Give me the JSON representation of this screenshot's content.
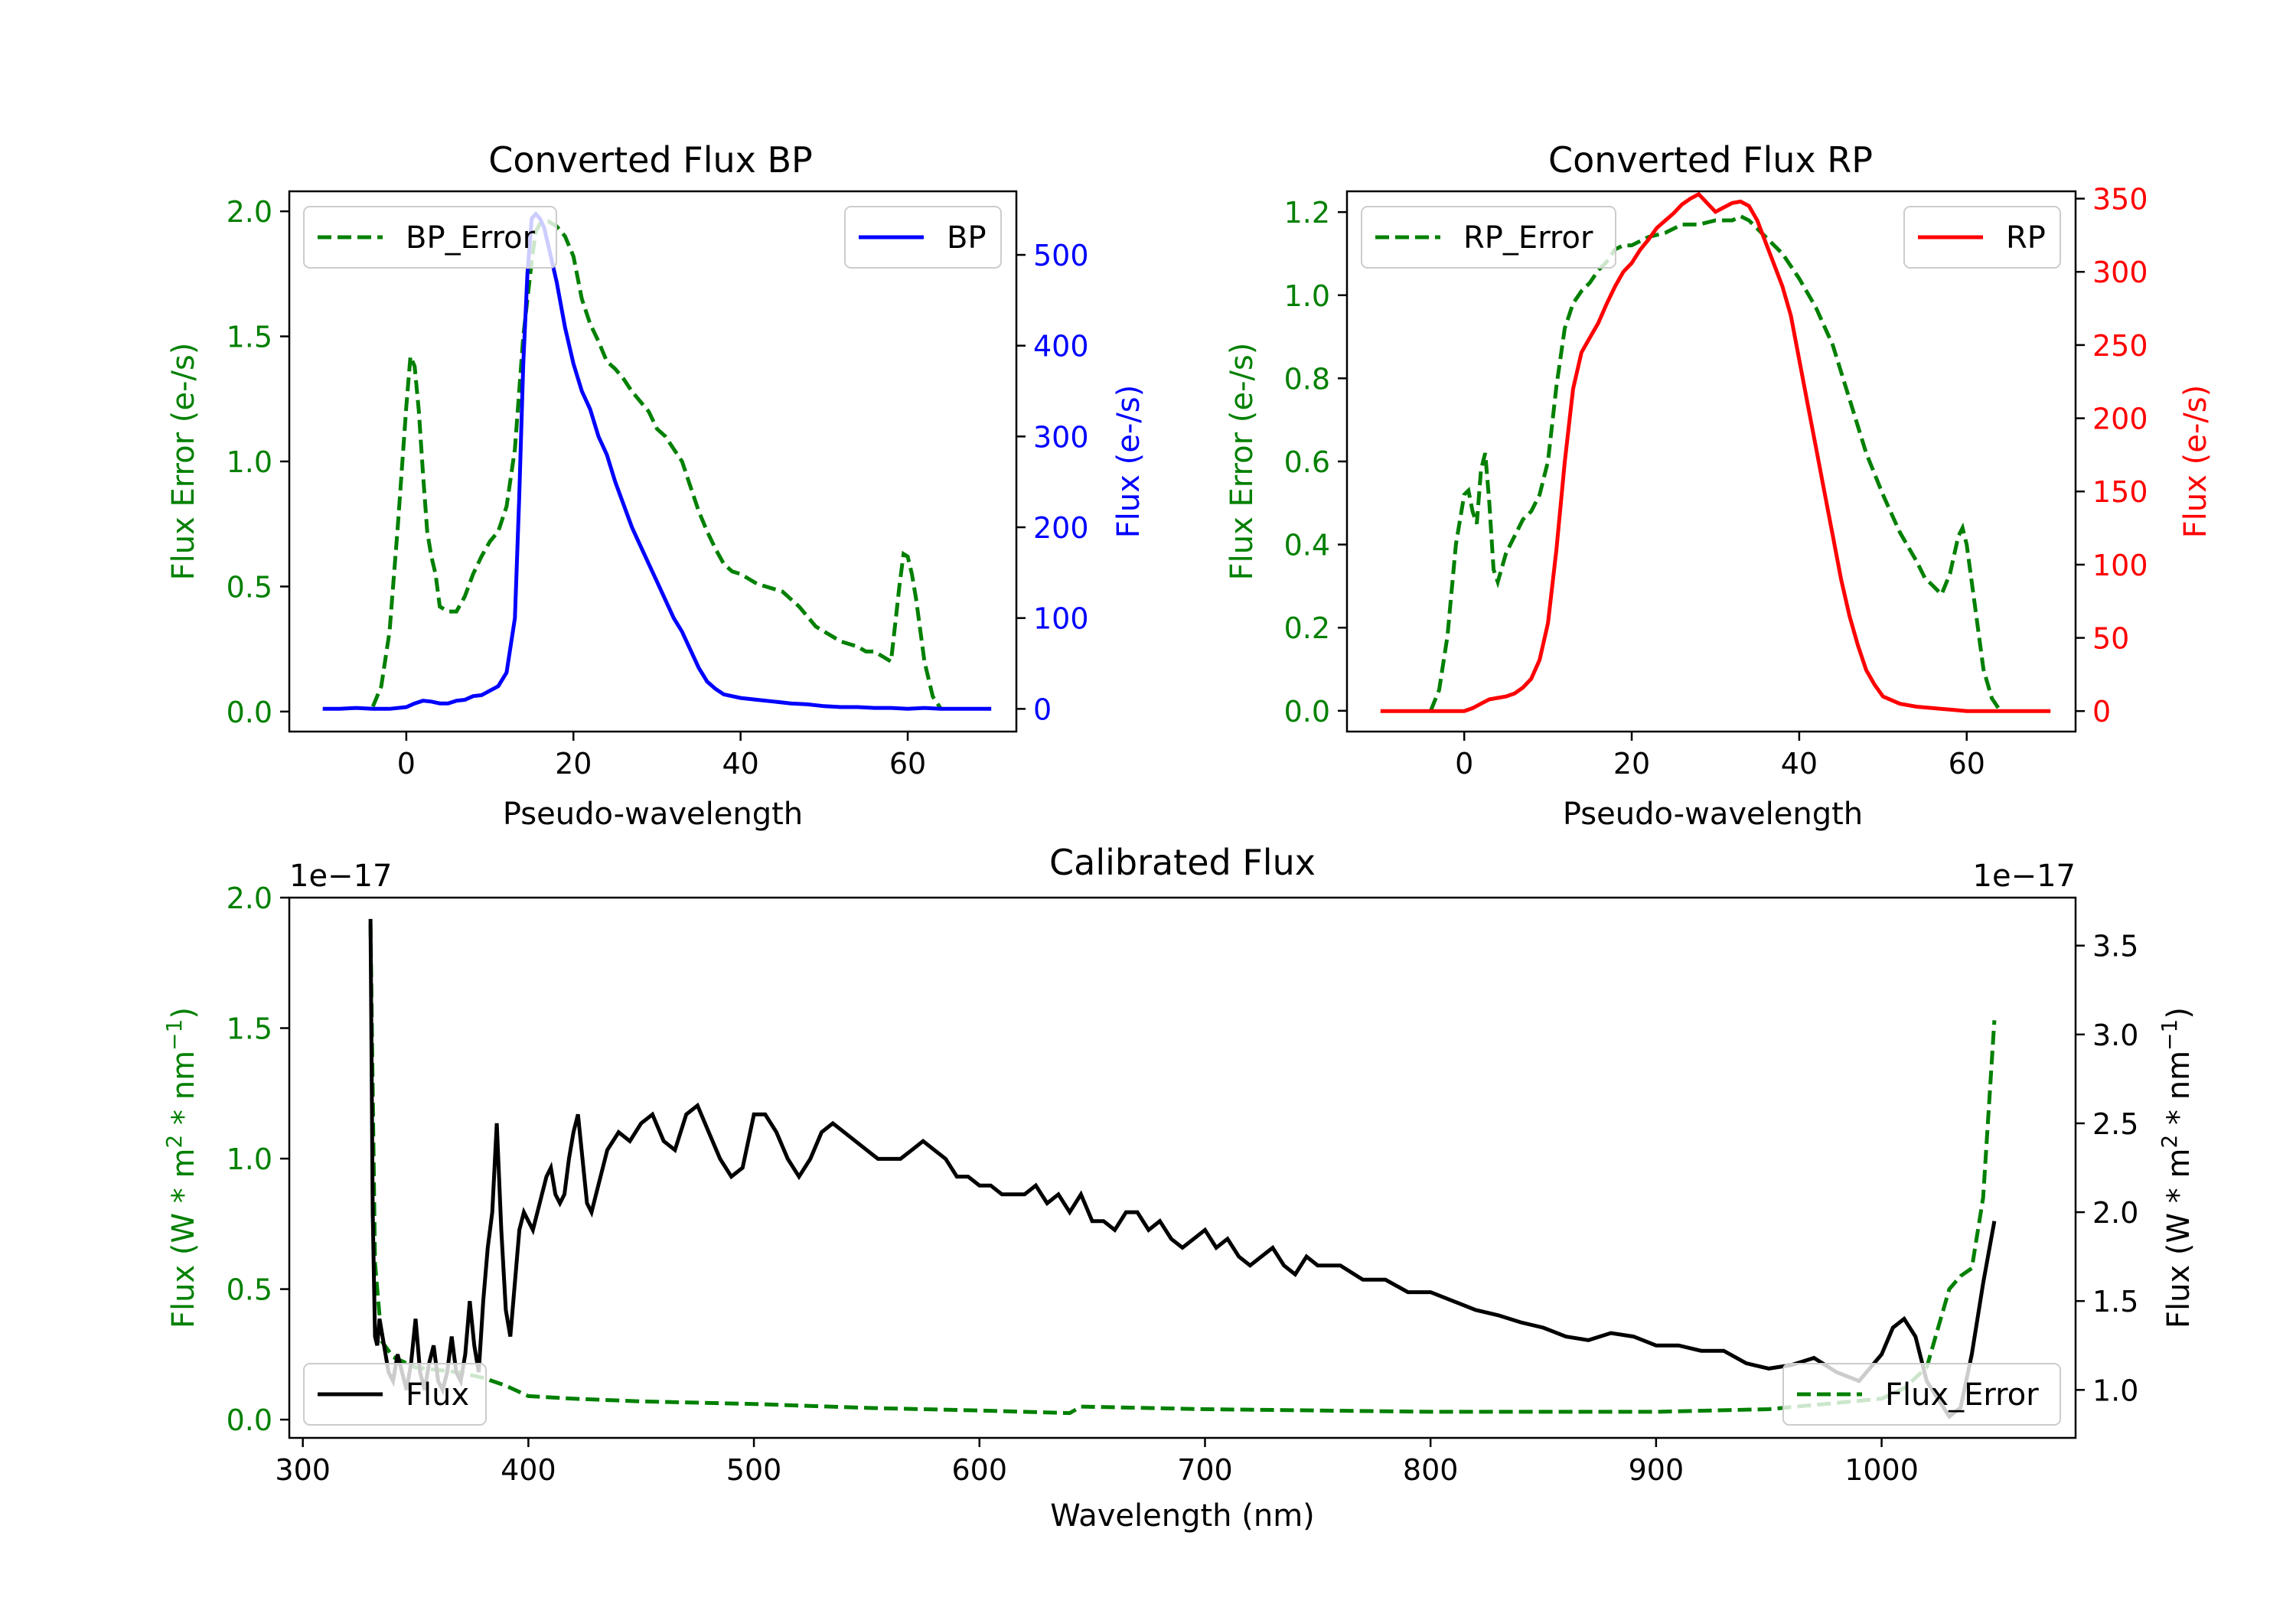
{
  "colors": {
    "green": "#008000",
    "blue": "#0000ff",
    "red": "#ff0000",
    "black": "#000000"
  },
  "chart_data": [
    {
      "type": "line",
      "title": "Converted Flux BP",
      "xlabel": "Pseudo-wavelength",
      "ylabel_left": "Flux Error (e-/s)",
      "ylabel_right": "Flux (e-/s)",
      "xlim": [
        -14,
        73
      ],
      "ylim_left": [
        -0.08,
        2.08
      ],
      "ylim_right": [
        -25,
        570
      ],
      "xticks": [
        0,
        20,
        40,
        60
      ],
      "yticks_left": [
        0.0,
        0.5,
        1.0,
        1.5,
        2.0
      ],
      "yticks_right": [
        0,
        100,
        200,
        300,
        400,
        500
      ],
      "legend_left": "BP_Error",
      "legend_right": "BP",
      "legend_left_loc": "upper-left",
      "legend_right_loc": "upper-right",
      "series": [
        {
          "name": "BP_Error",
          "axis": "left",
          "style": "dashed",
          "color": "green",
          "x": [
            -4,
            -3,
            -2,
            -1,
            0,
            0.5,
            1,
            1.5,
            2,
            2.5,
            3,
            3.5,
            4,
            5,
            6,
            7,
            8,
            9,
            10,
            11,
            12,
            13,
            14,
            15,
            15.5,
            16,
            17,
            18,
            19,
            20,
            21,
            22,
            23,
            24,
            25,
            26,
            27,
            28,
            29,
            30,
            31,
            32,
            33,
            34,
            35,
            36,
            37,
            38,
            39,
            40,
            41,
            42,
            43,
            44,
            45,
            46,
            47,
            48,
            49,
            50,
            51,
            52,
            53,
            54,
            55,
            56,
            57,
            58,
            58.5,
            59,
            59.5,
            60,
            60.5,
            61,
            62,
            63,
            64
          ],
          "y": [
            0.02,
            0.1,
            0.32,
            0.75,
            1.22,
            1.42,
            1.38,
            1.2,
            0.95,
            0.72,
            0.62,
            0.55,
            0.42,
            0.4,
            0.4,
            0.46,
            0.55,
            0.62,
            0.68,
            0.72,
            0.82,
            1.05,
            1.5,
            1.8,
            1.92,
            1.95,
            1.96,
            1.94,
            1.9,
            1.82,
            1.65,
            1.55,
            1.48,
            1.4,
            1.37,
            1.33,
            1.28,
            1.24,
            1.2,
            1.13,
            1.1,
            1.05,
            1.0,
            0.9,
            0.8,
            0.72,
            0.65,
            0.59,
            0.56,
            0.55,
            0.53,
            0.51,
            0.5,
            0.49,
            0.48,
            0.45,
            0.42,
            0.38,
            0.34,
            0.32,
            0.3,
            0.28,
            0.27,
            0.26,
            0.24,
            0.24,
            0.22,
            0.2,
            0.35,
            0.5,
            0.63,
            0.62,
            0.55,
            0.45,
            0.2,
            0.06,
            0.01
          ]
        },
        {
          "name": "BP",
          "axis": "right",
          "style": "solid",
          "color": "blue",
          "x": [
            -10,
            -8,
            -6,
            -4,
            -2,
            0,
            1,
            2,
            3,
            4,
            5,
            6,
            7,
            8,
            9,
            10,
            11,
            12,
            13,
            13.5,
            14,
            14.5,
            15,
            15.5,
            16,
            16.5,
            17,
            18,
            19,
            20,
            21,
            22,
            23,
            24,
            25,
            26,
            27,
            28,
            29,
            30,
            31,
            32,
            33,
            34,
            35,
            36,
            37,
            38,
            40,
            42,
            44,
            46,
            48,
            50,
            52,
            54,
            56,
            58,
            60,
            62,
            64,
            66,
            68,
            70
          ],
          "y": [
            0,
            0,
            1,
            0,
            0,
            2,
            6,
            9,
            8,
            6,
            6,
            9,
            10,
            14,
            15,
            20,
            25,
            40,
            100,
            230,
            380,
            480,
            540,
            545,
            540,
            530,
            510,
            470,
            420,
            380,
            350,
            330,
            300,
            280,
            250,
            225,
            200,
            180,
            160,
            140,
            120,
            100,
            85,
            65,
            45,
            30,
            22,
            16,
            12,
            10,
            8,
            6,
            5,
            3,
            2,
            2,
            1,
            1,
            0,
            1,
            0,
            0,
            0,
            0
          ]
        }
      ]
    },
    {
      "type": "line",
      "title": "Converted Flux RP",
      "xlabel": "Pseudo-wavelength",
      "ylabel_left": "Flux Error (e-/s)",
      "ylabel_right": "Flux (e-/s)",
      "xlim": [
        -14,
        73
      ],
      "ylim_left": [
        -0.05,
        1.25
      ],
      "ylim_right": [
        -14,
        355
      ],
      "xticks": [
        0,
        20,
        40,
        60
      ],
      "yticks_left": [
        0.0,
        0.2,
        0.4,
        0.6,
        0.8,
        1.0,
        1.2
      ],
      "yticks_right": [
        0,
        50,
        100,
        150,
        200,
        250,
        300,
        350
      ],
      "legend_left": "RP_Error",
      "legend_right": "RP",
      "legend_left_loc": "upper-left",
      "legend_right_loc": "upper-right",
      "series": [
        {
          "name": "RP_Error",
          "axis": "left",
          "style": "dashed",
          "color": "green",
          "x": [
            -4,
            -3,
            -2,
            -1,
            0,
            0.5,
            1,
            1.5,
            2,
            2.5,
            3,
            3.5,
            4,
            5,
            6,
            7,
            8,
            9,
            10,
            11,
            12,
            13,
            14,
            15,
            16,
            17,
            18,
            19,
            20,
            22,
            24,
            26,
            28,
            30,
            32,
            33,
            34,
            35,
            36,
            38,
            40,
            42,
            44,
            46,
            48,
            50,
            52,
            54,
            55,
            56,
            57,
            58,
            59,
            59.5,
            60,
            61,
            62,
            63,
            64
          ],
          "y": [
            0.0,
            0.05,
            0.18,
            0.4,
            0.52,
            0.53,
            0.48,
            0.45,
            0.58,
            0.62,
            0.5,
            0.34,
            0.31,
            0.38,
            0.42,
            0.46,
            0.48,
            0.52,
            0.6,
            0.78,
            0.92,
            0.98,
            1.01,
            1.03,
            1.06,
            1.08,
            1.11,
            1.12,
            1.12,
            1.14,
            1.15,
            1.17,
            1.17,
            1.18,
            1.18,
            1.19,
            1.18,
            1.16,
            1.14,
            1.1,
            1.04,
            0.97,
            0.88,
            0.75,
            0.62,
            0.52,
            0.43,
            0.36,
            0.32,
            0.3,
            0.28,
            0.33,
            0.42,
            0.44,
            0.4,
            0.25,
            0.1,
            0.03,
            0.0
          ]
        },
        {
          "name": "RP",
          "axis": "right",
          "style": "solid",
          "color": "red",
          "x": [
            -10,
            -8,
            -6,
            -4,
            -2,
            0,
            1,
            2,
            3,
            4,
            5,
            6,
            7,
            8,
            9,
            10,
            11,
            12,
            13,
            14,
            15,
            16,
            17,
            18,
            19,
            20,
            21,
            22,
            23,
            24,
            25,
            26,
            27,
            28,
            29,
            30,
            31,
            32,
            33,
            34,
            35,
            36,
            37,
            38,
            39,
            40,
            41,
            42,
            43,
            44,
            45,
            46,
            47,
            48,
            49,
            50,
            52,
            54,
            56,
            58,
            60,
            62,
            64,
            66,
            68,
            70
          ],
          "y": [
            0,
            0,
            0,
            0,
            0,
            0,
            2,
            5,
            8,
            9,
            10,
            12,
            16,
            22,
            35,
            60,
            110,
            170,
            220,
            245,
            255,
            265,
            278,
            290,
            300,
            306,
            315,
            322,
            330,
            335,
            340,
            346,
            350,
            353,
            347,
            341,
            344,
            347,
            348,
            345,
            335,
            320,
            305,
            290,
            270,
            240,
            210,
            180,
            150,
            120,
            90,
            65,
            45,
            28,
            18,
            10,
            5,
            3,
            2,
            1,
            0,
            0,
            0,
            0,
            0,
            0
          ]
        }
      ]
    },
    {
      "type": "line",
      "title": "Calibrated Flux",
      "xlabel": "Wavelength (nm)",
      "ylabel_left_pre": "Flux (W * m",
      "ylabel_left_sup1": "2",
      "ylabel_left_mid": " * nm",
      "ylabel_left_sup2": "−1",
      "ylabel_left_post": ")",
      "ylabel_right_pre": "Flux (W * m",
      "ylabel_right_sup1": "2",
      "ylabel_right_mid": " * nm",
      "ylabel_right_sup2": "−1",
      "ylabel_right_post": ")",
      "offset_left": "1e−17",
      "offset_right": "1e−17",
      "xlim": [
        294,
        1086
      ],
      "ylim_left": [
        -0.07,
        2.0
      ],
      "ylim_right": [
        0.73,
        3.77
      ],
      "xticks": [
        300,
        400,
        500,
        600,
        700,
        800,
        900,
        1000
      ],
      "yticks_left": [
        0.0,
        0.5,
        1.0,
        1.5,
        2.0
      ],
      "yticks_right": [
        1.0,
        1.5,
        2.0,
        2.5,
        3.0,
        3.5
      ],
      "legend_left": "Flux",
      "legend_right": "Flux_Error",
      "legend_left_loc": "lower-left",
      "legend_right_loc": "lower-right",
      "series": [
        {
          "name": "Flux_Error",
          "axis": "left",
          "style": "dashed",
          "color": "green",
          "x": [
            330,
            332,
            335,
            340,
            350,
            360,
            370,
            380,
            390,
            400,
            420,
            450,
            500,
            550,
            600,
            640,
            645,
            700,
            800,
            900,
            950,
            1000,
            1010,
            1020,
            1025,
            1030,
            1035,
            1040,
            1045,
            1050
          ],
          "y": [
            1.9,
            0.6,
            0.3,
            0.24,
            0.2,
            0.19,
            0.18,
            0.16,
            0.13,
            0.09,
            0.08,
            0.07,
            0.06,
            0.045,
            0.035,
            0.025,
            0.05,
            0.04,
            0.03,
            0.03,
            0.04,
            0.08,
            0.12,
            0.2,
            0.35,
            0.5,
            0.55,
            0.58,
            0.85,
            1.53
          ]
        },
        {
          "name": "Flux",
          "axis": "right",
          "style": "solid",
          "color": "black",
          "x": [
            330,
            331,
            332,
            333,
            334,
            336,
            338,
            340,
            342,
            344,
            346,
            348,
            350,
            352,
            354,
            356,
            358,
            360,
            362,
            364,
            366,
            368,
            370,
            372,
            374,
            376,
            378,
            380,
            382,
            384,
            386,
            388,
            390,
            392,
            394,
            396,
            398,
            400,
            402,
            404,
            406,
            408,
            410,
            412,
            414,
            416,
            418,
            420,
            422,
            424,
            426,
            428,
            430,
            435,
            440,
            445,
            450,
            455,
            460,
            465,
            470,
            475,
            480,
            485,
            490,
            495,
            500,
            505,
            510,
            515,
            520,
            525,
            530,
            535,
            540,
            545,
            550,
            555,
            560,
            565,
            570,
            575,
            580,
            585,
            590,
            595,
            600,
            605,
            610,
            615,
            620,
            625,
            630,
            635,
            640,
            645,
            650,
            655,
            660,
            665,
            670,
            675,
            680,
            685,
            690,
            695,
            700,
            705,
            710,
            715,
            720,
            725,
            730,
            735,
            740,
            745,
            750,
            760,
            770,
            780,
            790,
            800,
            810,
            820,
            830,
            840,
            850,
            860,
            870,
            880,
            890,
            900,
            910,
            920,
            930,
            940,
            950,
            960,
            970,
            980,
            990,
            1000,
            1005,
            1010,
            1015,
            1020,
            1025,
            1030,
            1035,
            1040,
            1045,
            1050
          ],
          "y": [
            3.65,
            2.0,
            1.3,
            1.25,
            1.4,
            1.25,
            1.1,
            1.05,
            1.2,
            1.1,
            1.0,
            1.15,
            1.4,
            1.1,
            1.0,
            1.15,
            1.25,
            1.05,
            1.0,
            1.1,
            1.3,
            1.1,
            1.05,
            1.2,
            1.5,
            1.25,
            1.1,
            1.5,
            1.8,
            2.0,
            2.5,
            1.9,
            1.45,
            1.3,
            1.6,
            1.9,
            2.0,
            1.95,
            1.9,
            2.0,
            2.1,
            2.2,
            2.25,
            2.1,
            2.05,
            2.1,
            2.3,
            2.45,
            2.55,
            2.3,
            2.05,
            2.0,
            2.1,
            2.35,
            2.45,
            2.4,
            2.5,
            2.55,
            2.4,
            2.35,
            2.55,
            2.6,
            2.45,
            2.3,
            2.2,
            2.25,
            2.55,
            2.55,
            2.45,
            2.3,
            2.2,
            2.3,
            2.45,
            2.5,
            2.45,
            2.4,
            2.35,
            2.3,
            2.3,
            2.3,
            2.35,
            2.4,
            2.35,
            2.3,
            2.2,
            2.2,
            2.15,
            2.15,
            2.1,
            2.1,
            2.1,
            2.15,
            2.05,
            2.1,
            2.0,
            2.1,
            1.95,
            1.95,
            1.9,
            2.0,
            2.0,
            1.9,
            1.95,
            1.85,
            1.8,
            1.85,
            1.9,
            1.8,
            1.85,
            1.75,
            1.7,
            1.75,
            1.8,
            1.7,
            1.65,
            1.75,
            1.7,
            1.7,
            1.62,
            1.62,
            1.55,
            1.55,
            1.5,
            1.45,
            1.42,
            1.38,
            1.35,
            1.3,
            1.28,
            1.32,
            1.3,
            1.25,
            1.25,
            1.22,
            1.22,
            1.15,
            1.12,
            1.14,
            1.18,
            1.1,
            1.05,
            1.2,
            1.35,
            1.4,
            1.3,
            1.05,
            0.95,
            0.85,
            0.9,
            1.2,
            1.6,
            1.95
          ]
        }
      ]
    }
  ]
}
